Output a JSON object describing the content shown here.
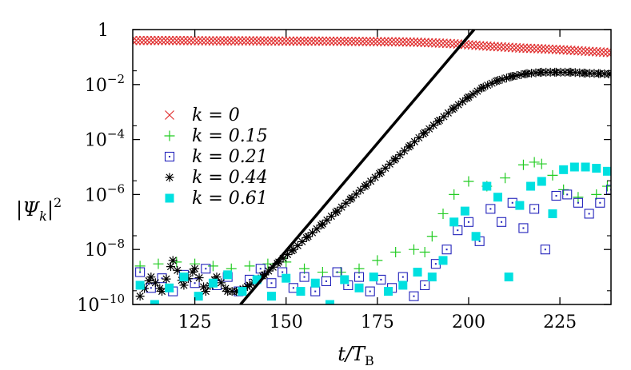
{
  "chart_data": {
    "type": "scatter",
    "xlabel": "t/T_B",
    "ylabel": "|Ψ_k|^2",
    "xlim": [
      108,
      239
    ],
    "ylim": [
      1e-10,
      1
    ],
    "log_y": true,
    "x_ticks": [
      125,
      150,
      175,
      200,
      225
    ],
    "x_tick_labels": [
      "125",
      "150",
      "175",
      "200",
      "225"
    ],
    "y_ticks": [
      1e-10,
      1e-08,
      1e-06,
      0.0001,
      0.01,
      1
    ],
    "y_tick_labels": [
      {
        "base": "10",
        "exp": "−10"
      },
      {
        "base": "10",
        "exp": "−8"
      },
      {
        "base": "10",
        "exp": "−6"
      },
      {
        "base": "10",
        "exp": "−4"
      },
      {
        "base": "10",
        "exp": "−2"
      },
      {
        "base": "1",
        "exp": ""
      }
    ],
    "legend_position": "left",
    "grid": false,
    "series": [
      {
        "name": "k = 0",
        "marker": "x",
        "color": "#e03030",
        "x": [
          108,
          120,
          130,
          140,
          150,
          160,
          170,
          180,
          185,
          190,
          195,
          200,
          205,
          210,
          215,
          220,
          225,
          230,
          235,
          239
        ],
        "y": [
          0.4,
          0.4,
          0.39,
          0.39,
          0.38,
          0.38,
          0.37,
          0.36,
          0.35,
          0.33,
          0.31,
          0.28,
          0.25,
          0.23,
          0.21,
          0.2,
          0.185,
          0.17,
          0.155,
          0.145
        ]
      },
      {
        "name": "k = 0.15",
        "marker": "+",
        "color": "#22cc22",
        "x": [
          110,
          115,
          120,
          125,
          130,
          135,
          140,
          145,
          150,
          155,
          160,
          165,
          170,
          175,
          180,
          185,
          188,
          190,
          193,
          196,
          200,
          205,
          210,
          215,
          218,
          220,
          223,
          226,
          230,
          235,
          238
        ],
        "y": [
          2.5e-09,
          3e-09,
          3.5e-09,
          3e-09,
          2.5e-09,
          2e-09,
          2.5e-09,
          3e-09,
          3.5e-09,
          2e-09,
          1.5e-09,
          1.5e-09,
          2e-09,
          4e-09,
          8e-09,
          1e-08,
          8e-09,
          3e-08,
          2e-07,
          1e-06,
          3e-06,
          2e-06,
          4e-06,
          1.2e-05,
          1.5e-05,
          1.3e-05,
          5e-06,
          1.5e-06,
          8e-07,
          1e-06,
          2e-06
        ]
      },
      {
        "name": "k = 0.21",
        "marker": "square-open",
        "color": "#2222bb",
        "x": [
          110,
          113,
          116,
          119,
          122,
          125,
          128,
          131,
          134,
          137,
          140,
          143,
          146,
          149,
          152,
          155,
          158,
          161,
          164,
          167,
          170,
          173,
          176,
          179,
          182,
          185,
          188,
          191,
          194,
          197,
          200,
          203,
          206,
          209,
          212,
          215,
          218,
          221,
          224,
          227,
          230,
          233,
          236,
          239
        ],
        "y": [
          1.5e-09,
          4e-10,
          9e-10,
          3e-10,
          1.2e-09,
          6e-10,
          2e-09,
          5e-10,
          1e-09,
          3e-10,
          8e-10,
          2e-09,
          6e-10,
          1.5e-09,
          4e-10,
          1e-09,
          3e-10,
          7e-10,
          1.5e-09,
          5e-10,
          1e-09,
          3e-10,
          8e-10,
          4e-10,
          1e-09,
          2e-10,
          5e-10,
          3e-09,
          1e-08,
          5e-08,
          1e-07,
          2e-08,
          3e-07,
          1e-07,
          5e-07,
          6e-08,
          3e-07,
          1e-08,
          9e-07,
          1e-06,
          5e-07,
          2e-07,
          5e-07,
          1.5e-06
        ]
      },
      {
        "name": "k = 0.44",
        "marker": "star",
        "color": "#000000",
        "x": [
          110,
          113,
          116,
          119,
          122,
          125,
          128,
          131,
          134,
          137,
          140,
          144,
          148,
          152,
          156,
          160,
          164,
          168,
          172,
          176,
          180,
          184,
          188,
          192,
          196,
          200,
          204,
          208,
          212,
          216,
          220,
          224,
          228,
          232,
          236,
          239
        ],
        "y": [
          2e-10,
          1e-09,
          3e-10,
          4e-09,
          5e-10,
          2e-09,
          3e-10,
          1e-09,
          3e-10,
          3e-10,
          5e-10,
          1.2e-09,
          3.5e-09,
          1e-08,
          3e-08,
          8.5e-08,
          2.5e-07,
          7.5e-07,
          2.2e-06,
          6.5e-06,
          2e-05,
          6e-05,
          0.00018,
          0.0005,
          0.0014,
          0.0035,
          0.008,
          0.014,
          0.02,
          0.025,
          0.028,
          0.028,
          0.028,
          0.026,
          0.025,
          0.024
        ]
      },
      {
        "name": "k = 0.61",
        "marker": "square-filled",
        "color": "#00e0e0",
        "x": [
          110,
          114,
          118,
          122,
          126,
          130,
          134,
          138,
          142,
          146,
          150,
          154,
          158,
          162,
          166,
          170,
          174,
          178,
          182,
          186,
          190,
          193,
          196,
          199,
          202,
          205,
          208,
          211,
          214,
          217,
          220,
          223,
          226,
          229,
          232,
          235,
          238
        ],
        "y": [
          5e-10,
          1e-10,
          4e-10,
          1e-09,
          2e-10,
          6e-10,
          1.2e-09,
          3e-10,
          8e-10,
          2e-10,
          9e-10,
          3e-10,
          6e-10,
          1e-10,
          8e-10,
          4e-10,
          1e-09,
          3e-10,
          5e-10,
          1.5e-09,
          1e-09,
          4e-09,
          1e-07,
          2.5e-07,
          3e-08,
          2e-06,
          8e-07,
          1e-09,
          4e-07,
          2e-06,
          3e-06,
          2e-07,
          8e-06,
          1e-05,
          1e-05,
          9e-06,
          7e-06
        ]
      }
    ],
    "fit_line": {
      "color": "#000000",
      "x": [
        137.5,
        201.5
      ],
      "y": [
        1e-10,
        1
      ]
    }
  }
}
